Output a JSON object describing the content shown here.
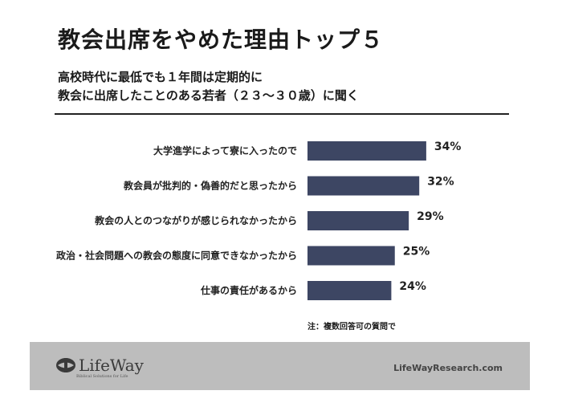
{
  "title": "教会出席をやめた理由トップ５",
  "subtitle": {
    "line1": "高校時代に最低でも１年間は定期的に",
    "line2": "教会に出席したことのある若者（２３～３０歳）に聞く"
  },
  "note": "注：複数回答可の質問で",
  "footer": {
    "logo_text": "LifeWay",
    "logo_tagline": "Biblical Solutions for Life",
    "site": "LifeWayResearch.com"
  },
  "colors": {
    "bar": "#3d4663",
    "footer_bg": "#bdbdbd"
  },
  "chart_data": {
    "type": "bar",
    "orientation": "horizontal",
    "categories": [
      "大学進学によって寮に入ったので",
      "教会員が批判的・偽善的だと思ったから",
      "教会の人とのつながりが感じられなかったから",
      "政治・社会問題への教会の態度に同意できなかったから",
      "仕事の責任があるから"
    ],
    "values": [
      34,
      32,
      29,
      25,
      24
    ],
    "value_labels": [
      "34%",
      "32%",
      "29%",
      "25%",
      "24%"
    ],
    "unit": "%",
    "xlim": [
      0,
      100
    ],
    "grid": false
  }
}
